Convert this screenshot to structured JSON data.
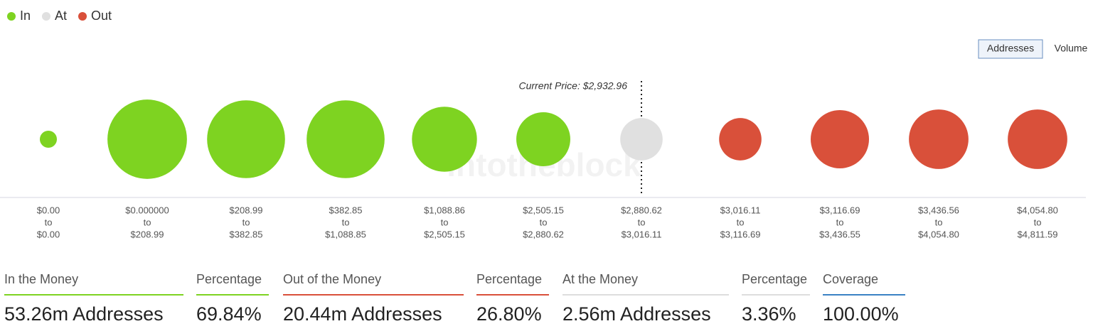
{
  "chart_data": {
    "type": "bubble",
    "legend": [
      {
        "name": "In",
        "color": "#7ed321"
      },
      {
        "name": "At",
        "color": "#e0e0e0"
      },
      {
        "name": "Out",
        "color": "#d9503a"
      }
    ],
    "toggle": [
      "Addresses",
      "Volume"
    ],
    "annotation": "Current Price: $2,932.96",
    "watermark": "intotheblock",
    "joiner": "to",
    "categories": [
      {
        "from": "$0.00",
        "to": "$0.00"
      },
      {
        "from": "$0.000000",
        "to": "$208.99"
      },
      {
        "from": "$208.99",
        "to": "$382.85"
      },
      {
        "from": "$382.85",
        "to": "$1,088.85"
      },
      {
        "from": "$1,088.86",
        "to": "$2,505.15"
      },
      {
        "from": "$2,505.15",
        "to": "$2,880.62"
      },
      {
        "from": "$2,880.62",
        "to": "$3,016.11"
      },
      {
        "from": "$3,016.11",
        "to": "$3,116.69"
      },
      {
        "from": "$3,116.69",
        "to": "$3,436.55"
      },
      {
        "from": "$3,436.56",
        "to": "$4,054.80"
      },
      {
        "from": "$4,054.80",
        "to": "$4,811.59"
      }
    ],
    "groups": [
      0,
      0,
      0,
      0,
      0,
      0,
      1,
      2,
      2,
      2,
      2
    ],
    "values": [
      0.6,
      13.0,
      12.5,
      12.5,
      8.7,
      6.0,
      3.7,
      3.7,
      7.0,
      7.3,
      7.3
    ]
  },
  "summary": [
    {
      "label": "In the Money",
      "value": "53.26m Addresses",
      "color": "#7ed321"
    },
    {
      "label": "Percentage",
      "value": "69.84%",
      "color": "#7ed321"
    },
    {
      "label": "Out of the Money",
      "value": "20.44m Addresses",
      "color": "#d9503a"
    },
    {
      "label": "Percentage",
      "value": "26.80%",
      "color": "#d9503a"
    },
    {
      "label": "At the Money",
      "value": "2.56m Addresses",
      "color": "#dddddd"
    },
    {
      "label": "Percentage",
      "value": "3.36%",
      "color": "#dddddd"
    },
    {
      "label": "Coverage",
      "value": "100.00%",
      "color": "#3b82c4"
    }
  ]
}
